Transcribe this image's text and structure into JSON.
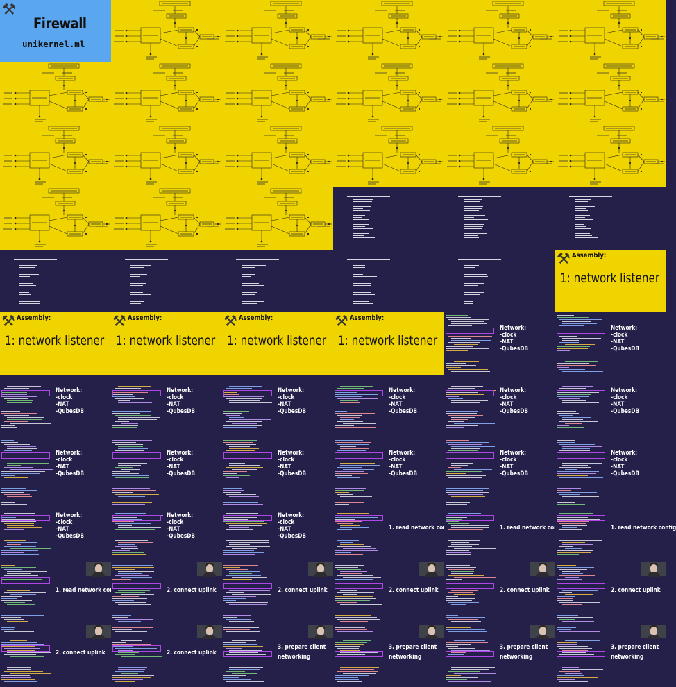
{
  "title": "Firewall",
  "subtitle": "unikernel.ml",
  "tools_icon": "hammer-and-wrench-icon",
  "assembly_label": "Assembly:",
  "assembly_headline": "1: network listener",
  "network": {
    "heading": "Network:",
    "items": [
      "-clock",
      "-NAT",
      "-QubesDB"
    ]
  },
  "steps": {
    "read_config": "1. read network config",
    "connect_uplink": "2. connect uplink",
    "prepare_client_line1": "3. prepare client",
    "prepare_client_line2": "networking"
  },
  "colors": {
    "yellow_slide": "#f0d400",
    "navy_slide": "#25204a",
    "title_slide": "#5aa7f0",
    "highlight_box": "#b046e8"
  },
  "frames": [
    "title",
    "diagram",
    "diagram",
    "diagram",
    "diagram",
    "diagram",
    "diagram",
    "diagram",
    "diagram",
    "diagram",
    "diagram",
    "diagram",
    "diagram",
    "diagram",
    "diagram",
    "diagram",
    "diagram",
    "diagram",
    "diagram",
    "diagram",
    "diagram",
    "terminal",
    "terminal",
    "terminal",
    "terminal",
    "terminal",
    "terminal",
    "terminal",
    "terminal",
    "assembly",
    "assembly",
    "assembly",
    "assembly",
    "assembly",
    "code-network",
    "code-network",
    "code-network",
    "code-network",
    "code-network",
    "code-network",
    "code-network",
    "code-network",
    "code-network",
    "code-network",
    "code-network",
    "code-network",
    "code-network",
    "code-network",
    "code-network",
    "code-network",
    "code-network",
    "code-step1",
    "code-step1",
    "code-step1",
    "code-step1-cam",
    "code-step2-cam",
    "code-step2-cam",
    "code-step2-cam",
    "code-step2-cam",
    "code-step2-cam",
    "code-step2-cam",
    "code-step2-cam",
    "code-step3-cam",
    "code-step3-cam",
    "code-step3-cam",
    "code-step3-cam"
  ]
}
